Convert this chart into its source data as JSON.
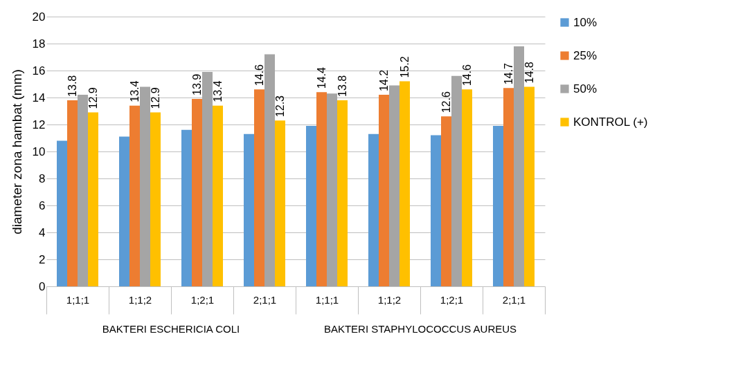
{
  "chart_data": {
    "type": "bar",
    "ylabel": "diameter zona hambat (mm)",
    "categories": [
      "1;1;1",
      "1;1;2",
      "1;2;1",
      "2;1;1",
      "1;1;1",
      "1;1;2",
      "1;2;1",
      "2;1;1"
    ],
    "series": [
      {
        "name": "10%",
        "color": "#5b9bd5",
        "values": [
          10.8,
          11.1,
          11.6,
          11.3,
          11.9,
          11.3,
          11.2,
          11.9
        ]
      },
      {
        "name": "25%",
        "color": "#ed7d31",
        "values": [
          13.8,
          13.4,
          13.9,
          14.6,
          14.4,
          14.2,
          12.6,
          14.7
        ],
        "value_labels": [
          "13.8",
          "13.4",
          "13.9",
          "14.6",
          "14.4",
          "14.2",
          "12.6",
          "14.7"
        ]
      },
      {
        "name": "50%",
        "color": "#a5a5a5",
        "values": [
          14.2,
          14.8,
          15.9,
          17.2,
          14.3,
          14.9,
          15.6,
          17.8
        ]
      },
      {
        "name": "KONTROL (+)",
        "color": "#ffc000",
        "values": [
          12.9,
          12.9,
          13.4,
          12.3,
          13.8,
          15.2,
          14.6,
          14.8
        ],
        "value_labels": [
          "12.9",
          "12.9",
          "13.4",
          "12.3",
          "13.8",
          "15.2",
          "14.6",
          "14.8"
        ]
      }
    ],
    "ylim": [
      0,
      20
    ],
    "yticks": [
      0,
      2,
      4,
      6,
      8,
      10,
      12,
      14,
      16,
      18,
      20
    ],
    "grid": "y",
    "legend": "right",
    "annotations": [
      "BAKTERI ESCHERICIA COLI",
      "BAKTERI STAPHYLOCOCCUS AUREUS"
    ]
  }
}
